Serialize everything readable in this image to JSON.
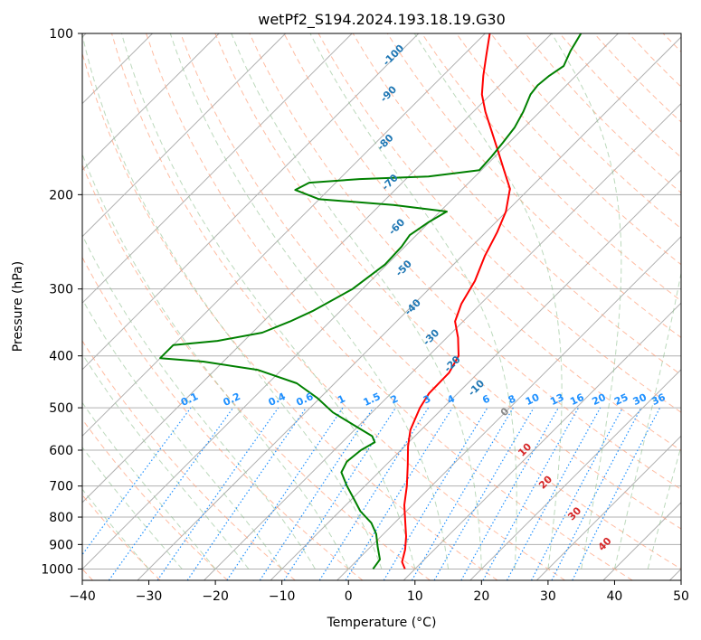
{
  "chart_data": {
    "type": "line",
    "chart_kind": "Skew-T log-P diagram",
    "title": "wetPf2_S194.2024.193.18.19.G30",
    "xlabel": "Temperature (°C)",
    "ylabel": "Pressure (hPa)",
    "xlim": [
      -40,
      50
    ],
    "ylim": [
      1050,
      100
    ],
    "y_scale": "log",
    "grid": true,
    "x_ticks": [
      -40,
      -30,
      -20,
      -10,
      0,
      10,
      20,
      30,
      40,
      50
    ],
    "y_ticks": [
      100,
      200,
      300,
      400,
      500,
      600,
      700,
      800,
      900,
      1000
    ],
    "series": [
      {
        "color": "#ff0000",
        "points": [
          {
            "p": 1000,
            "t": 8.5
          },
          {
            "p": 970,
            "t": 7
          },
          {
            "p": 920,
            "t": 5.6
          },
          {
            "p": 870,
            "t": 3.8
          },
          {
            "p": 820,
            "t": 1.6
          },
          {
            "p": 760,
            "t": -1.2
          },
          {
            "p": 700,
            "t": -3.7
          },
          {
            "p": 640,
            "t": -6.7
          },
          {
            "p": 590,
            "t": -9.5
          },
          {
            "p": 550,
            "t": -11.6
          },
          {
            "p": 500,
            "t": -13.5
          },
          {
            "p": 470,
            "t": -14.3
          },
          {
            "p": 430,
            "t": -14.4
          },
          {
            "p": 400,
            "t": -15.5
          },
          {
            "p": 370,
            "t": -18.3
          },
          {
            "p": 345,
            "t": -21.2
          },
          {
            "p": 320,
            "t": -22.9
          },
          {
            "p": 290,
            "t": -24.3
          },
          {
            "p": 260,
            "t": -26.6
          },
          {
            "p": 235,
            "t": -28.3
          },
          {
            "p": 215,
            "t": -30.1
          },
          {
            "p": 195,
            "t": -32.9
          },
          {
            "p": 180,
            "t": -36.6
          },
          {
            "p": 165,
            "t": -40.6
          },
          {
            "p": 150,
            "t": -45
          },
          {
            "p": 140,
            "t": -48.2
          },
          {
            "p": 130,
            "t": -51.3
          },
          {
            "p": 120,
            "t": -53.9
          },
          {
            "p": 110,
            "t": -56.5
          },
          {
            "p": 100,
            "t": -59.3
          }
        ]
      },
      {
        "color": "#008000",
        "points": [
          {
            "p": 1000,
            "t": 3.7
          },
          {
            "p": 960,
            "t": 3.3
          },
          {
            "p": 910,
            "t": 1.1
          },
          {
            "p": 860,
            "t": -1.1
          },
          {
            "p": 820,
            "t": -3.5
          },
          {
            "p": 780,
            "t": -6.9
          },
          {
            "p": 740,
            "t": -9.7
          },
          {
            "p": 700,
            "t": -12.7
          },
          {
            "p": 660,
            "t": -15.6
          },
          {
            "p": 630,
            "t": -16.4
          },
          {
            "p": 600,
            "t": -16
          },
          {
            "p": 580,
            "t": -15.1
          },
          {
            "p": 565,
            "t": -16.4
          },
          {
            "p": 540,
            "t": -20.6
          },
          {
            "p": 510,
            "t": -25.9
          },
          {
            "p": 480,
            "t": -30.3
          },
          {
            "p": 450,
            "t": -35.7
          },
          {
            "p": 425,
            "t": -43.5
          },
          {
            "p": 410,
            "t": -53
          },
          {
            "p": 404,
            "t": -60
          },
          {
            "p": 382,
            "t": -60
          },
          {
            "p": 375,
            "t": -54
          },
          {
            "p": 362,
            "t": -48.5
          },
          {
            "p": 345,
            "t": -46
          },
          {
            "p": 330,
            "t": -44.2
          },
          {
            "p": 300,
            "t": -41.5
          },
          {
            "p": 270,
            "t": -40.3
          },
          {
            "p": 250,
            "t": -40.5
          },
          {
            "p": 238,
            "t": -41
          },
          {
            "p": 225,
            "t": -40.1
          },
          {
            "p": 215,
            "t": -39
          },
          {
            "p": 209,
            "t": -48
          },
          {
            "p": 204,
            "t": -60
          },
          {
            "p": 196,
            "t": -65
          },
          {
            "p": 190,
            "t": -64
          },
          {
            "p": 187,
            "t": -57
          },
          {
            "p": 185,
            "t": -47
          },
          {
            "p": 180,
            "t": -40.3
          },
          {
            "p": 170,
            "t": -40.5
          },
          {
            "p": 160,
            "t": -40.9
          },
          {
            "p": 150,
            "t": -41.4
          },
          {
            "p": 140,
            "t": -42.5
          },
          {
            "p": 130,
            "t": -44
          },
          {
            "p": 125,
            "t": -44.3
          },
          {
            "p": 120,
            "t": -44
          },
          {
            "p": 115,
            "t": -43.3
          },
          {
            "p": 108,
            "t": -44.5
          },
          {
            "p": 100,
            "t": -45.6
          }
        ]
      }
    ],
    "isotherm_labels": [
      {
        "text": "-100",
        "color": "#1f77b4",
        "t": -70.4,
        "p": 110
      },
      {
        "text": "-90",
        "color": "#1f77b4",
        "t": -65.3,
        "p": 130
      },
      {
        "text": "-80",
        "color": "#1f77b4",
        "t": -58.5,
        "p": 160
      },
      {
        "text": "-70",
        "color": "#1f77b4",
        "t": -51.8,
        "p": 190
      },
      {
        "text": "-60",
        "color": "#1f77b4",
        "t": -44.1,
        "p": 230
      },
      {
        "text": "-50",
        "color": "#1f77b4",
        "t": -36.8,
        "p": 275
      },
      {
        "text": "-40",
        "color": "#1f77b4",
        "t": -29.6,
        "p": 325
      },
      {
        "text": "-30",
        "color": "#1f77b4",
        "t": -22.3,
        "p": 370
      },
      {
        "text": "-20",
        "color": "#1f77b4",
        "t": -15.1,
        "p": 415
      },
      {
        "text": "-10",
        "color": "#1f77b4",
        "t": -7.9,
        "p": 460
      },
      {
        "text": "0",
        "color": "#888888",
        "t": 0,
        "p": 510
      },
      {
        "text": "10",
        "color": "#d62728",
        "t": 8.7,
        "p": 600
      },
      {
        "text": "20",
        "color": "#d62728",
        "t": 16.7,
        "p": 690
      },
      {
        "text": "30",
        "color": "#d62728",
        "t": 25.8,
        "p": 790
      },
      {
        "text": "40",
        "color": "#d62728",
        "t": 34.9,
        "p": 900
      }
    ],
    "mixing_ratio_labels": [
      "0.1",
      "0.2",
      "0.4",
      "0.6",
      "1",
      "1.5",
      "2",
      "3",
      "4",
      "6",
      "8",
      "10",
      "13",
      "16",
      "20",
      "25",
      "30",
      "36"
    ],
    "colors": {
      "temperature": "#ff0000",
      "dewpoint": "#008000",
      "isobar_isotherm_grid": "#b0b0b0",
      "dry_adiabat": "#ffa07a",
      "moist_adiabat": "#90c090",
      "mixing_ratio": "#1e90ff",
      "isotherm_label_cold": "#1f77b4",
      "isotherm_label_warm": "#d62728",
      "isotherm_label_zero": "#888888"
    }
  }
}
